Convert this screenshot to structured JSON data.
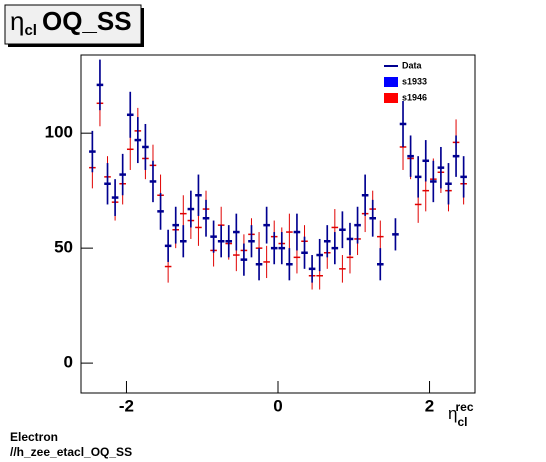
{
  "chart_data": {
    "type": "histogram",
    "title_symbol": "η",
    "title_subscript": "cl",
    "title_text": "OQ_SS",
    "x_label_symbol": "η",
    "x_label_subscript": "cl",
    "x_label_superscript": "rec",
    "footer": [
      "Electron",
      "//h_zee_etacl_OQ_SS"
    ],
    "bins": [
      -2.5,
      -2.4,
      -2.3,
      -2.2,
      -2.1,
      -2.0,
      -1.9,
      -1.8,
      -1.7,
      -1.6,
      -1.5,
      -1.4,
      -1.3,
      -1.2,
      -1.1,
      -1.0,
      -0.9,
      -0.8,
      -0.7,
      -0.6,
      -0.5,
      -0.4,
      -0.3,
      -0.2,
      -0.1,
      0.0,
      0.1,
      0.2,
      0.3,
      0.4,
      0.5,
      0.6,
      0.7,
      0.8,
      0.9,
      1.0,
      1.1,
      1.2,
      1.3,
      1.4,
      1.5,
      1.6,
      1.7,
      1.8,
      1.9,
      2.0,
      2.1,
      2.2,
      2.3,
      2.4,
      2.5
    ],
    "series": [
      {
        "name": "s1946",
        "color": "#e00000",
        "values": [
          85,
          113,
          81,
          70,
          78,
          93,
          101,
          89,
          86,
          73,
          42,
          58,
          65,
          62,
          59,
          67,
          49,
          60,
          52,
          47,
          49,
          56,
          50,
          44,
          55,
          52,
          57,
          46,
          53,
          38,
          38,
          48,
          59,
          41,
          46,
          54,
          65,
          67,
          55,
          null,
          null,
          94,
          89,
          69,
          75,
          80,
          83,
          75,
          96,
          78
        ],
        "errors": [
          9,
          10,
          9,
          8,
          9,
          9,
          10,
          9,
          9,
          9,
          7,
          8,
          8,
          8,
          8,
          8,
          7,
          8,
          7,
          7,
          7,
          7,
          7,
          7,
          7,
          7,
          8,
          7,
          7,
          6,
          6,
          7,
          8,
          6,
          7,
          7,
          8,
          8,
          7,
          null,
          null,
          10,
          9,
          8,
          9,
          9,
          9,
          9,
          10,
          9
        ]
      },
      {
        "name": "s1933",
        "color": "#000090",
        "values": [
          92,
          121,
          78,
          72,
          82,
          108,
          97,
          94,
          79,
          66,
          51,
          60,
          53,
          67,
          73,
          63,
          55,
          53,
          53,
          57,
          45,
          53,
          43,
          60,
          50,
          50,
          43,
          57,
          48,
          41,
          47,
          53,
          50,
          58,
          54,
          60,
          73,
          63,
          43,
          null,
          56,
          104,
          90,
          81,
          88,
          79,
          85,
          78,
          90,
          81
        ],
        "errors": [
          9,
          11,
          9,
          8,
          9,
          10,
          10,
          10,
          9,
          8,
          7,
          8,
          7,
          8,
          9,
          8,
          7,
          7,
          7,
          8,
          7,
          7,
          7,
          8,
          7,
          7,
          7,
          8,
          7,
          6,
          7,
          7,
          7,
          8,
          7,
          8,
          9,
          8,
          7,
          null,
          7,
          10,
          9,
          9,
          9,
          9,
          9,
          9,
          9,
          9
        ]
      }
    ],
    "legend": [
      {
        "name": "Data",
        "color": "#000090",
        "shape": "line"
      },
      {
        "name": "s1933",
        "color": "#0000ff",
        "shape": "box"
      },
      {
        "name": "s1946",
        "color": "#ff0000",
        "shape": "box"
      }
    ],
    "xlim": [
      -2.6,
      2.6
    ],
    "ylim": [
      -13,
      134
    ],
    "xticks": [
      -2,
      0,
      2
    ],
    "yticks": [
      0,
      50,
      100
    ]
  }
}
